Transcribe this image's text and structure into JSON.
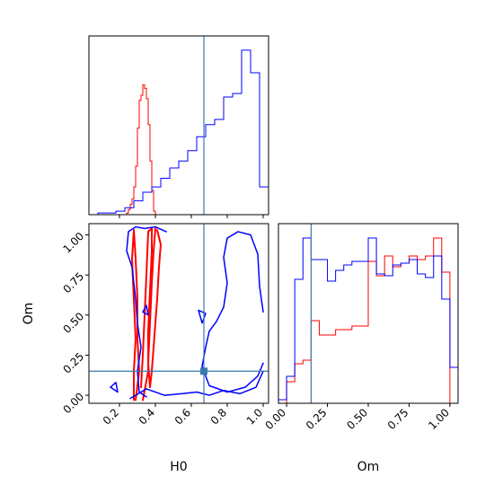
{
  "chart_data": {
    "type": "corner",
    "parameters": [
      "H0",
      "Om"
    ],
    "truths": {
      "H0": 0.67,
      "Om": 0.15
    },
    "colors": {
      "red": "#ff0000",
      "blue": "#0000ff",
      "truth": "#3a77b0",
      "axes": "#000000"
    },
    "grid": false,
    "legend": "none",
    "panels": [
      {
        "id": "h0-hist",
        "type": "step-histogram",
        "x_range": [
          0.03,
          1.03
        ],
        "ticks": [
          0.2,
          0.4,
          0.6,
          0.8,
          1.0
        ],
        "tick_labels_shown": false,
        "series": [
          {
            "color": "red",
            "bin_edges": [
              0.24,
              0.25,
              0.26,
              0.27,
              0.28,
              0.29,
              0.3,
              0.31,
              0.32,
              0.33,
              0.34,
              0.35,
              0.36,
              0.37,
              0.38,
              0.39,
              0.4
            ],
            "counts": [
              0.01,
              0.03,
              0.06,
              0.09,
              0.16,
              0.28,
              0.5,
              0.66,
              0.69,
              0.75,
              0.73,
              0.67,
              0.52,
              0.31,
              0.14,
              0.02
            ]
          },
          {
            "color": "blue",
            "bin_edges": [
              0.03,
              0.08,
              0.13,
              0.18,
              0.23,
              0.28,
              0.33,
              0.38,
              0.43,
              0.48,
              0.53,
              0.58,
              0.63,
              0.68,
              0.73,
              0.78,
              0.83,
              0.88,
              0.93,
              0.98,
              1.03
            ],
            "counts": [
              0.0,
              0.01,
              0.01,
              0.02,
              0.04,
              0.08,
              0.13,
              0.16,
              0.21,
              0.27,
              0.31,
              0.37,
              0.45,
              0.52,
              0.55,
              0.68,
              0.7,
              0.95,
              0.82,
              0.16
            ]
          }
        ]
      },
      {
        "id": "om-hist",
        "type": "step-histogram",
        "x_range": [
          -0.05,
          1.05
        ],
        "ticks": [
          0.0,
          0.25,
          0.5,
          0.75,
          1.0
        ],
        "tick_labels": [
          "0.00",
          "0.25",
          "0.50",
          "0.75",
          "1.00"
        ],
        "xlabel": "Om",
        "series": [
          {
            "color": "red",
            "bin_edges": [
              0.0,
              0.05,
              0.1,
              0.15,
              0.2,
              0.25,
              0.3,
              0.35,
              0.4,
              0.45,
              0.5,
              0.55,
              0.6,
              0.65,
              0.7,
              0.75,
              0.8,
              0.85,
              0.9,
              0.95,
              1.0
            ],
            "counts": [
              0.12,
              0.22,
              0.24,
              0.46,
              0.38,
              0.38,
              0.41,
              0.41,
              0.43,
              0.43,
              0.79,
              0.71,
              0.82,
              0.76,
              0.78,
              0.82,
              0.8,
              0.82,
              0.92,
              0.73
            ]
          },
          {
            "color": "blue",
            "bin_edges": [
              -0.05,
              0.0,
              0.05,
              0.1,
              0.15,
              0.2,
              0.25,
              0.3,
              0.35,
              0.4,
              0.45,
              0.5,
              0.55,
              0.6,
              0.65,
              0.7,
              0.75,
              0.8,
              0.85,
              0.9,
              0.95,
              1.0,
              1.05
            ],
            "counts": [
              0.02,
              0.15,
              0.69,
              0.92,
              0.8,
              0.8,
              0.68,
              0.74,
              0.77,
              0.79,
              0.79,
              0.92,
              0.72,
              0.71,
              0.77,
              0.78,
              0.8,
              0.72,
              0.7,
              0.82,
              0.58,
              0.2
            ]
          }
        ]
      },
      {
        "id": "h0-om-2d",
        "type": "contour",
        "x_range": [
          0.03,
          1.03
        ],
        "y_range": [
          -0.05,
          1.07
        ],
        "x_ticks": [
          0.2,
          0.4,
          0.6,
          0.8,
          1.0
        ],
        "x_tick_labels": [
          "0.2",
          "0.4",
          "0.6",
          "0.8",
          "1.0"
        ],
        "y_ticks": [
          0.0,
          0.25,
          0.5,
          0.75,
          1.0
        ],
        "y_tick_labels": [
          "0.00",
          "0.25",
          "0.50",
          "0.75",
          "1.00"
        ],
        "xlabel": "H0",
        "ylabel": "Om",
        "contours": [
          {
            "color": "red",
            "width": 2,
            "points": [
              [
                0.29,
                -0.03
              ],
              [
                0.31,
                0.15
              ],
              [
                0.3,
                0.35
              ],
              [
                0.3,
                0.6
              ],
              [
                0.29,
                0.85
              ],
              [
                0.28,
                1.03
              ],
              [
                0.27,
                0.85
              ],
              [
                0.28,
                0.6
              ],
              [
                0.29,
                0.35
              ],
              [
                0.28,
                0.15
              ],
              [
                0.28,
                -0.03
              ]
            ]
          },
          {
            "color": "red",
            "width": 2,
            "points": [
              [
                0.33,
                -0.03
              ],
              [
                0.36,
                0.15
              ],
              [
                0.36,
                0.4
              ],
              [
                0.37,
                0.65
              ],
              [
                0.38,
                0.9
              ],
              [
                0.38,
                1.04
              ],
              [
                0.36,
                1.02
              ],
              [
                0.35,
                0.75
              ],
              [
                0.34,
                0.5
              ],
              [
                0.33,
                0.25
              ],
              [
                0.32,
                0.05
              ]
            ]
          },
          {
            "color": "red",
            "width": 2,
            "points": [
              [
                0.41,
                1.03
              ],
              [
                0.43,
                0.94
              ],
              [
                0.42,
                0.8
              ],
              [
                0.41,
                0.6
              ],
              [
                0.4,
                0.45
              ],
              [
                0.39,
                0.3
              ],
              [
                0.38,
                0.15
              ],
              [
                0.37,
                0.05
              ],
              [
                0.36,
                0.2
              ],
              [
                0.37,
                0.45
              ],
              [
                0.38,
                0.7
              ],
              [
                0.39,
                0.9
              ],
              [
                0.4,
                1.04
              ]
            ]
          },
          {
            "color": "blue",
            "width": 1.5,
            "points": [
              [
                0.26,
                -0.02
              ],
              [
                0.35,
                0.04
              ],
              [
                0.45,
                0.0
              ],
              [
                0.55,
                0.01
              ],
              [
                0.63,
                0.02
              ],
              [
                0.7,
                0.0
              ],
              [
                0.78,
                0.03
              ],
              [
                0.87,
                0.01
              ],
              [
                0.96,
                0.05
              ],
              [
                1.0,
                0.15
              ]
            ]
          },
          {
            "color": "blue",
            "width": 1.5,
            "points": [
              [
                1.0,
                0.52
              ],
              [
                0.98,
                0.68
              ],
              [
                0.97,
                0.88
              ],
              [
                0.93,
                1.0
              ],
              [
                0.86,
                1.02
              ],
              [
                0.8,
                0.98
              ],
              [
                0.78,
                0.86
              ],
              [
                0.8,
                0.7
              ],
              [
                0.78,
                0.55
              ],
              [
                0.74,
                0.46
              ],
              [
                0.7,
                0.4
              ],
              [
                0.68,
                0.3
              ],
              [
                0.66,
                0.18
              ],
              [
                0.7,
                0.06
              ],
              [
                0.8,
                0.02
              ],
              [
                0.9,
                0.05
              ],
              [
                0.97,
                0.12
              ],
              [
                1.0,
                0.2
              ]
            ]
          },
          {
            "color": "blue",
            "width": 1.5,
            "points": [
              [
                0.46,
                1.02
              ],
              [
                0.4,
                1.05
              ],
              [
                0.34,
                1.04
              ],
              [
                0.29,
                1.05
              ],
              [
                0.25,
                1.02
              ],
              [
                0.24,
                0.9
              ],
              [
                0.27,
                0.8
              ],
              [
                0.29,
                0.6
              ],
              [
                0.3,
                0.45
              ],
              [
                0.32,
                0.3
              ],
              [
                0.3,
                0.15
              ],
              [
                0.31,
                0.02
              ],
              [
                0.35,
                -0.01
              ]
            ]
          },
          {
            "color": "blue",
            "width": 1.5,
            "points": [
              [
                0.15,
                0.05
              ],
              [
                0.19,
                0.02
              ],
              [
                0.18,
                0.08
              ],
              [
                0.15,
                0.05
              ]
            ]
          },
          {
            "color": "blue",
            "width": 1.5,
            "points": [
              [
                0.64,
                0.53
              ],
              [
                0.66,
                0.45
              ],
              [
                0.68,
                0.51
              ],
              [
                0.64,
                0.53
              ]
            ]
          },
          {
            "color": "blue",
            "width": 1.5,
            "points": [
              [
                0.35,
                0.56
              ],
              [
                0.33,
                0.52
              ],
              [
                0.36,
                0.5
              ],
              [
                0.35,
                0.56
              ]
            ]
          }
        ]
      }
    ]
  }
}
